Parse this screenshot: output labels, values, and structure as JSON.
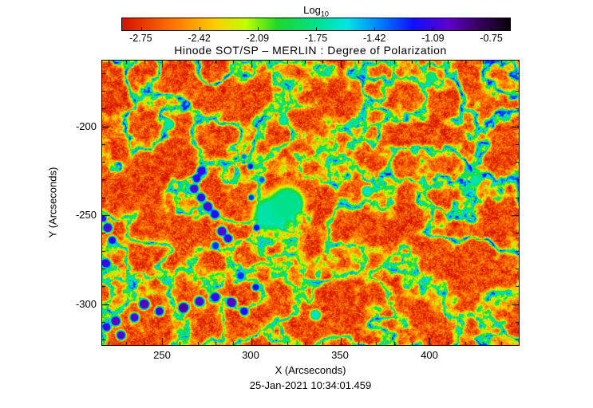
{
  "header": {
    "colorbar_scale_label": "Log",
    "colorbar_scale_subscript": "10"
  },
  "title": "Hinode SOT/SP – MERLIN : Degree of Polarization",
  "timestamp": "25-Jan-2021 10:34:01.459",
  "colorbar": {
    "tick_labels": [
      "-2.75",
      "-2.42",
      "-2.09",
      "-1.75",
      "-1.42",
      "-1.09",
      "-0.75"
    ]
  },
  "axes": {
    "x_label": "X (Arcseconds)",
    "y_label": "Y (Arcseconds)",
    "x_tick_labels": [
      "250",
      "300",
      "350",
      "400"
    ],
    "y_tick_labels": [
      "-200",
      "-250",
      "-300"
    ]
  },
  "chart_data": {
    "type": "heatmap",
    "title": "Hinode SOT/SP – MERLIN : Degree of Polarization",
    "xlabel": "X (Arcseconds)",
    "ylabel": "Y (Arcseconds)",
    "timestamp": "25-Jan-2021 10:34:01.459",
    "x_range": [
      216.4,
      450.0
    ],
    "y_range": [
      -323.0,
      -163.0
    ],
    "x_major_ticks": [
      250,
      300,
      350,
      400
    ],
    "y_major_ticks": [
      -200,
      -250,
      -300
    ],
    "minor_tick_step": 10,
    "color_scale": {
      "label": "Log10 (Degree of Polarization)",
      "min": -2.75,
      "max": -0.75,
      "ticks": [
        -2.75,
        -2.42,
        -2.09,
        -1.75,
        -1.42,
        -1.09,
        -0.75
      ],
      "stops": [
        {
          "t": 0.0,
          "c": [
            215,
            15,
            0
          ]
        },
        {
          "t": 0.13,
          "c": [
            255,
            115,
            0
          ]
        },
        {
          "t": 0.24,
          "c": [
            255,
            205,
            0
          ]
        },
        {
          "t": 0.32,
          "c": [
            190,
            255,
            0
          ]
        },
        {
          "t": 0.4,
          "c": [
            30,
            215,
            40
          ]
        },
        {
          "t": 0.5,
          "c": [
            0,
            225,
            140
          ]
        },
        {
          "t": 0.58,
          "c": [
            0,
            230,
            230
          ]
        },
        {
          "t": 0.67,
          "c": [
            0,
            120,
            255
          ]
        },
        {
          "t": 0.75,
          "c": [
            15,
            15,
            255
          ]
        },
        {
          "t": 0.84,
          "c": [
            95,
            0,
            205
          ]
        },
        {
          "t": 0.92,
          "c": [
            55,
            0,
            95
          ]
        },
        {
          "t": 1.0,
          "c": [
            8,
            0,
            10
          ]
        }
      ]
    },
    "background_level": -2.6,
    "texture": {
      "fine_amp": 0.55,
      "medium_amp": 0.35,
      "network_strength": 1.25,
      "network_scale": 0.055
    },
    "features_format": [
      "x_arcsec",
      "y_arcsec",
      "radius_arcsec",
      "peak_log10_dop"
    ],
    "features": [
      [
        322.5,
        -243.5,
        5.0,
        -0.73
      ],
      [
        308.0,
        -250.5,
        3.8,
        -0.78
      ],
      [
        311.0,
        -249.0,
        9.0,
        -1.7
      ],
      [
        320.0,
        -243.0,
        9.0,
        -1.75
      ],
      [
        300.0,
        -240.0,
        1.8,
        -1.3
      ],
      [
        303.0,
        -257.0,
        2.0,
        -1.25
      ],
      [
        272.0,
        -225.0,
        2.6,
        -1.15
      ],
      [
        269.5,
        -229.5,
        2.4,
        -1.2
      ],
      [
        268.0,
        -235.0,
        2.6,
        -1.1
      ],
      [
        272.0,
        -240.0,
        2.6,
        -1.15
      ],
      [
        275.5,
        -245.0,
        2.8,
        -1.1
      ],
      [
        279.5,
        -249.5,
        2.6,
        -1.2
      ],
      [
        283.5,
        -259.0,
        2.8,
        -1.1
      ],
      [
        287.0,
        -263.0,
        2.6,
        -1.15
      ],
      [
        280.0,
        -267.0,
        2.2,
        -1.3
      ],
      [
        299.5,
        -222.5,
        1.8,
        -1.25
      ],
      [
        306.0,
        -230.0,
        1.8,
        -1.35
      ],
      [
        296.0,
        -217.0,
        1.6,
        -1.4
      ],
      [
        219.5,
        -257.0,
        2.8,
        -1.1
      ],
      [
        222.0,
        -264.0,
        2.4,
        -1.2
      ],
      [
        218.5,
        -277.0,
        2.6,
        -1.15
      ],
      [
        217.0,
        -252.0,
        2.0,
        -1.2
      ],
      [
        240.0,
        -300.0,
        3.0,
        -1.05
      ],
      [
        248.5,
        -304.0,
        2.6,
        -1.15
      ],
      [
        262.0,
        -302.0,
        3.0,
        -1.0
      ],
      [
        271.0,
        -298.5,
        2.8,
        -1.1
      ],
      [
        280.0,
        -296.0,
        2.6,
        -1.15
      ],
      [
        289.0,
        -299.0,
        2.8,
        -1.05
      ],
      [
        296.0,
        -304.0,
        2.4,
        -1.2
      ],
      [
        234.5,
        -307.5,
        2.6,
        -1.1
      ],
      [
        224.0,
        -309.5,
        2.8,
        -1.05
      ],
      [
        219.0,
        -313.0,
        2.4,
        -1.15
      ],
      [
        227.0,
        -317.5,
        2.6,
        -1.1
      ],
      [
        294.0,
        -284.0,
        2.2,
        -1.3
      ],
      [
        302.5,
        -290.5,
        2.2,
        -1.25
      ],
      [
        365.0,
        -236.5,
        3.0,
        -1.65
      ],
      [
        426.0,
        -230.0,
        3.0,
        -1.7
      ],
      [
        401.0,
        -172.0,
        3.0,
        -1.75
      ],
      [
        318.0,
        -197.0,
        2.5,
        -1.7
      ],
      [
        254.0,
        -199.0,
        3.0,
        -1.7
      ],
      [
        336.0,
        -306.0,
        3.0,
        -1.65
      ]
    ]
  }
}
